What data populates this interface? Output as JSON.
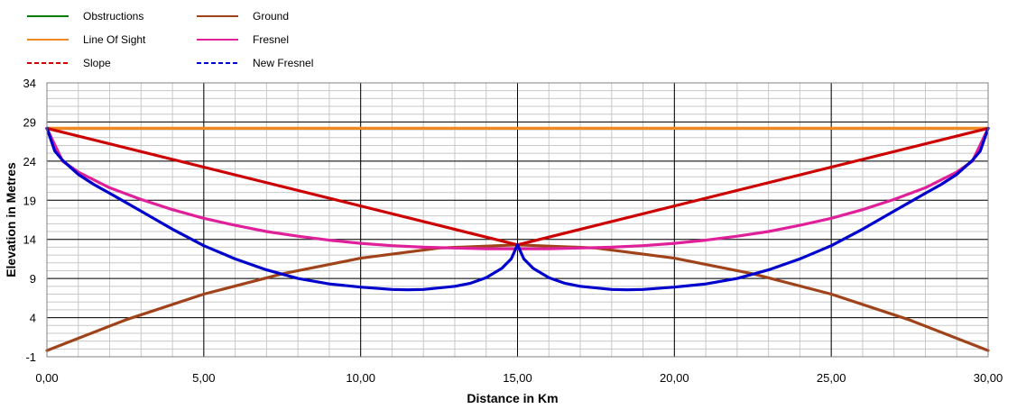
{
  "chart_data": {
    "type": "line",
    "xlabel": "Distance in Km",
    "ylabel": "Elevation in Metres",
    "xlim": [
      0,
      30
    ],
    "ylim": [
      -1,
      34
    ],
    "x_ticks": [
      "0,00",
      "5,00",
      "10,00",
      "15,00",
      "20,00",
      "25,00",
      "30,00"
    ],
    "y_ticks": [
      "-1",
      "4",
      "9",
      "14",
      "19",
      "24",
      "29",
      "34"
    ],
    "grid": true,
    "legend_position": "top-left",
    "legend": [
      {
        "name": "Obstructions",
        "color": "#007f00",
        "dash": "solid"
      },
      {
        "name": "Ground",
        "color": "#a0431a",
        "dash": "solid"
      },
      {
        "name": "Line Of Sight",
        "color": "#f08a20",
        "dash": "solid"
      },
      {
        "name": "Fresnel",
        "color": "#e0209a",
        "dash": "solid"
      },
      {
        "name": "Slope",
        "color": "#cc0000",
        "dash": "dashed"
      },
      {
        "name": "New Fresnel",
        "color": "#0000cc",
        "dash": "dashed"
      }
    ],
    "series": [
      {
        "name": "Line Of Sight",
        "color": "#f08a20",
        "x": [
          0,
          30
        ],
        "y": [
          28.2,
          28.2
        ]
      },
      {
        "name": "Ground",
        "color": "#a0431a",
        "x": [
          0,
          2.5,
          5,
          7.5,
          10,
          12.5,
          15,
          17.5,
          20,
          22.5,
          25,
          27.5,
          30
        ],
        "y": [
          -0.2,
          3.7,
          7.0,
          9.6,
          11.6,
          12.9,
          13.3,
          12.9,
          11.6,
          9.6,
          7.0,
          3.7,
          -0.2
        ]
      },
      {
        "name": "Slope",
        "color": "#cc0000",
        "x": [
          0,
          15,
          30
        ],
        "y": [
          28.2,
          13.3,
          28.2
        ]
      },
      {
        "name": "Fresnel",
        "color": "#e0209a",
        "x": [
          0,
          0.5,
          1,
          2,
          3,
          4,
          5,
          6,
          7,
          8,
          9,
          10,
          11,
          12,
          13,
          14,
          15,
          16,
          17,
          18,
          19,
          20,
          21,
          22,
          23,
          24,
          25,
          26,
          27,
          28,
          29,
          29.5,
          30
        ],
        "y": [
          28.2,
          24.0,
          22.6,
          20.6,
          19.1,
          17.8,
          16.7,
          15.8,
          15.0,
          14.4,
          13.9,
          13.5,
          13.2,
          13.0,
          12.9,
          12.8,
          12.8,
          12.8,
          12.9,
          13.0,
          13.2,
          13.5,
          13.9,
          14.4,
          15.0,
          15.8,
          16.7,
          17.8,
          19.1,
          20.6,
          22.6,
          24.0,
          28.2
        ]
      },
      {
        "name": "New Fresnel",
        "color": "#0000cc",
        "x": [
          0,
          0.25,
          0.5,
          1,
          1.5,
          2,
          3,
          4,
          5,
          6,
          7,
          8,
          9,
          10,
          11,
          11.5,
          12,
          13,
          13.5,
          14,
          14.5,
          14.8,
          15,
          15.2,
          15.5,
          16,
          16.5,
          17,
          18,
          18.5,
          19,
          20,
          21,
          22,
          23,
          24,
          25,
          26,
          27,
          28,
          28.5,
          29,
          29.5,
          29.75,
          30
        ],
        "y": [
          28.2,
          25.3,
          24.1,
          22.3,
          21.0,
          19.9,
          17.6,
          15.3,
          13.2,
          11.5,
          10.1,
          9.0,
          8.3,
          7.9,
          7.6,
          7.55,
          7.6,
          8.0,
          8.4,
          9.1,
          10.3,
          11.5,
          13.3,
          11.5,
          10.3,
          9.1,
          8.4,
          8.0,
          7.6,
          7.55,
          7.6,
          7.9,
          8.3,
          9.0,
          10.1,
          11.5,
          13.2,
          15.3,
          17.6,
          19.9,
          21.0,
          22.3,
          24.1,
          25.3,
          28.2
        ]
      }
    ]
  }
}
